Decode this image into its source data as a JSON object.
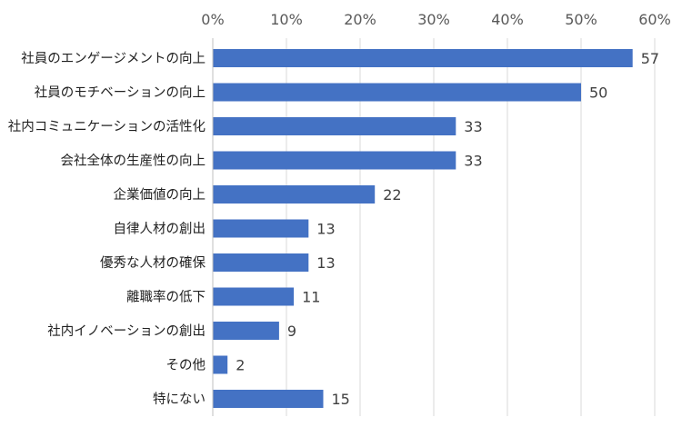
{
  "chart_data": {
    "type": "bar",
    "orientation": "horizontal",
    "x_ticks": [
      "0%",
      "10%",
      "20%",
      "30%",
      "40%",
      "50%",
      "60%"
    ],
    "xlim": [
      0,
      60
    ],
    "grid": true,
    "categories": [
      "社員のエンゲージメントの向上",
      "社員のモチベーションの向上",
      "社内コミュニケーションの活性化",
      "会社全体の生産性の向上",
      "企業価値の向上",
      "自律人材の創出",
      "優秀な人材の確保",
      "離職率の低下",
      "社内イノベーションの創出",
      "その他",
      "特にない"
    ],
    "values": [
      57,
      50,
      33,
      33,
      22,
      13,
      13,
      11,
      9,
      2,
      15
    ],
    "value_labels": [
      "57",
      "50",
      "33",
      "33",
      "22",
      "13",
      "13",
      "11",
      "9",
      "2",
      "15"
    ],
    "bar_color": "#4472C4",
    "grid_color": "#d9d9d9",
    "axis_color": "#bfbfbf"
  }
}
